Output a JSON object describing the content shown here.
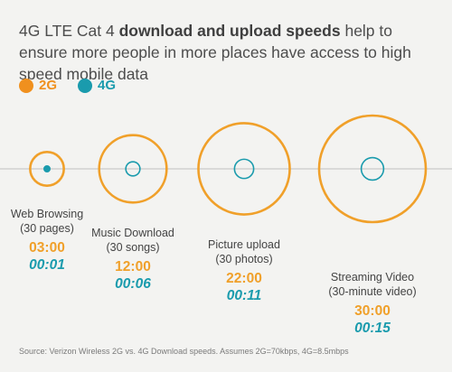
{
  "headline": {
    "pre": "4G LTE Cat 4 ",
    "bold": "download and upload speeds",
    "post": " help to ensure more people in more places have access to high speed mobile data"
  },
  "legend": [
    {
      "label": "2G",
      "color": "#f0901e"
    },
    {
      "label": "4G",
      "color": "#1a9bad"
    }
  ],
  "colors": {
    "g2": "#f0a02a",
    "g4": "#1a9bad",
    "axis": "#bfbfbf"
  },
  "chart_data": {
    "type": "bubble",
    "series": [
      {
        "name": "2G"
      },
      {
        "name": "4G"
      }
    ],
    "categories": [
      {
        "name": "Web Browsing",
        "detail": "(30 pages)",
        "time_2g": "03:00",
        "time_4g": "00:01",
        "seconds_2g": 180,
        "seconds_4g": 1
      },
      {
        "name": "Music Download",
        "detail": "(30 songs)",
        "time_2g": "12:00",
        "time_4g": "00:06",
        "seconds_2g": 720,
        "seconds_4g": 6
      },
      {
        "name": "Picture upload",
        "detail": "(30 photos)",
        "time_2g": "22:00",
        "time_4g": "00:11",
        "seconds_2g": 1320,
        "seconds_4g": 11
      },
      {
        "name": "Streaming Video",
        "detail": "(30-minute video)",
        "time_2g": "30:00",
        "time_4g": "00:15",
        "seconds_2g": 1800,
        "seconds_4g": 15
      }
    ]
  },
  "footnote": "Source: Verizon Wireless 2G vs. 4G Download speeds. Assumes 2G=70kbps, 4G=8.5mbps"
}
